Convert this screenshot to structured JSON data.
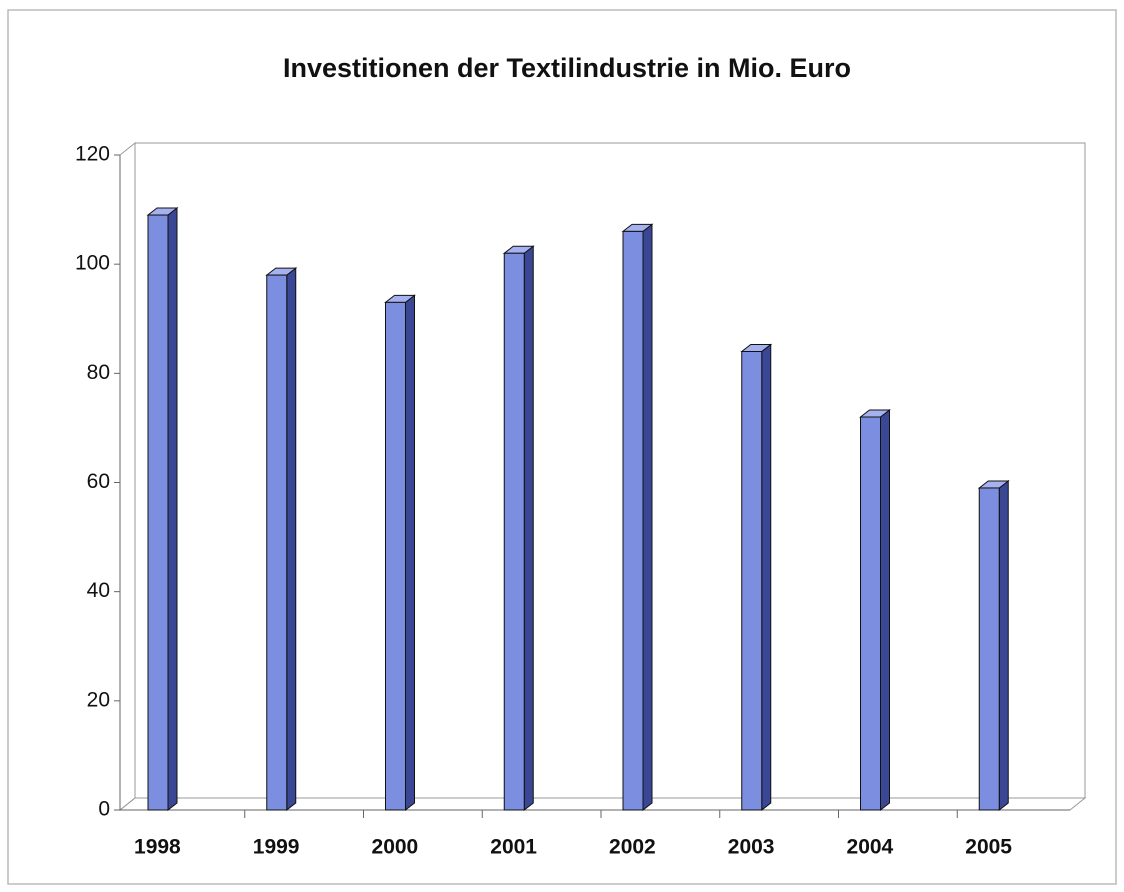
{
  "chart_data": {
    "type": "bar",
    "title": "Investitionen der Textilindustrie in Mio. Euro",
    "categories": [
      "1998",
      "1999",
      "2000",
      "2001",
      "2002",
      "2003",
      "2004",
      "2005"
    ],
    "values": [
      109,
      98,
      93,
      102,
      106,
      84,
      72,
      59
    ],
    "color": "#7b8ee0",
    "ylim": [
      0,
      120
    ],
    "yticks": [
      0,
      20,
      40,
      60,
      80,
      100,
      120
    ],
    "grid": false
  }
}
